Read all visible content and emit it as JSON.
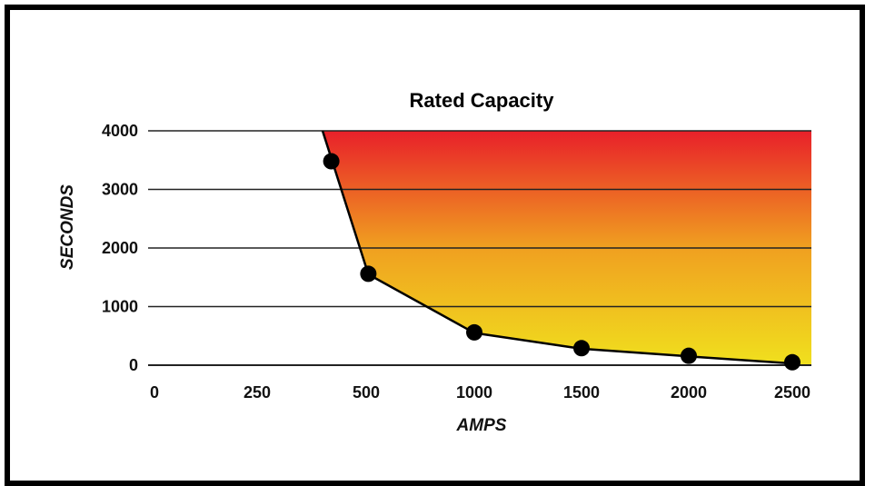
{
  "chart_data": {
    "type": "line",
    "title": "Rated Capacity",
    "xlabel": "AMPS",
    "ylabel": "SECONDS",
    "xlim": [
      0,
      2500
    ],
    "ylim": [
      0,
      4000
    ],
    "x_ticks": [
      "0",
      "250",
      "500",
      "1000",
      "1500",
      "2000",
      "2500"
    ],
    "y_ticks": [
      "0",
      "1000",
      "2000",
      "3000",
      "4000"
    ],
    "grid": "horizontal",
    "fill_gradient": [
      "#f0e01e",
      "#e8202a"
    ],
    "line_color": "#000000",
    "curve": {
      "x": [
        400,
        510,
        1000,
        1500,
        2000,
        2500
      ],
      "y": [
        4000,
        1550,
        550,
        280,
        150,
        30
      ]
    },
    "points": {
      "x": [
        420,
        510,
        1000,
        1500,
        2000,
        2500
      ],
      "y": [
        3480,
        1560,
        560,
        290,
        160,
        50
      ]
    }
  }
}
